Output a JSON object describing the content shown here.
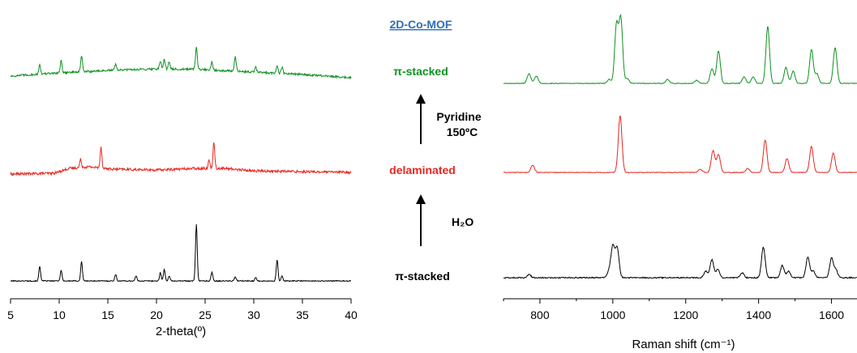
{
  "chart_data": [
    {
      "type": "line",
      "xlabel": "2-theta(º)",
      "ylabel": "",
      "xlim": [
        5,
        40
      ],
      "xticks": [
        5,
        10,
        15,
        20,
        25,
        30,
        35,
        40
      ],
      "grid": false,
      "series": [
        {
          "name": "π-stacked",
          "color": "#000000",
          "baseline": 0,
          "background": [
            [
              5,
              0
            ],
            [
              40,
              0
            ]
          ],
          "peaks": [
            [
              8.0,
              18
            ],
            [
              10.2,
              13
            ],
            [
              12.3,
              24
            ],
            [
              15.8,
              8
            ],
            [
              17.9,
              6
            ],
            [
              20.4,
              10
            ],
            [
              20.8,
              14
            ],
            [
              21.3,
              6
            ],
            [
              24.1,
              70
            ],
            [
              25.7,
              11
            ],
            [
              28.1,
              5
            ],
            [
              30.2,
              4
            ],
            [
              32.4,
              26
            ],
            [
              32.9,
              6
            ]
          ]
        },
        {
          "name": "delaminated",
          "color": "#e8261f",
          "baseline": 0,
          "background": [
            [
              5,
              1
            ],
            [
              9.5,
              2
            ],
            [
              11,
              8
            ],
            [
              13,
              10
            ],
            [
              15.5,
              7
            ],
            [
              20,
              6
            ],
            [
              24,
              8
            ],
            [
              27,
              8
            ],
            [
              30,
              5
            ],
            [
              40,
              3
            ]
          ],
          "peaks": [
            [
              12.2,
              10
            ],
            [
              14.3,
              26
            ],
            [
              25.9,
              33
            ],
            [
              25.4,
              10
            ]
          ]
        },
        {
          "name": "π-stacked",
          "color": "#0f9121",
          "baseline": 0,
          "background": [
            [
              5,
              4
            ],
            [
              10,
              8
            ],
            [
              15,
              11
            ],
            [
              20,
              13
            ],
            [
              25,
              12
            ],
            [
              30,
              9
            ],
            [
              35,
              6
            ],
            [
              40,
              2
            ]
          ],
          "peaks": [
            [
              8.0,
              12
            ],
            [
              10.2,
              15
            ],
            [
              12.3,
              20
            ],
            [
              15.8,
              8
            ],
            [
              20.4,
              10
            ],
            [
              20.8,
              12
            ],
            [
              21.3,
              9
            ],
            [
              24.1,
              28
            ],
            [
              25.7,
              10
            ],
            [
              28.1,
              18
            ],
            [
              30.2,
              6
            ],
            [
              32.4,
              10
            ],
            [
              32.9,
              8
            ]
          ]
        }
      ]
    },
    {
      "type": "line",
      "xlabel": "Raman shift (cm⁻¹)",
      "ylabel": "",
      "xlim": [
        700,
        1670
      ],
      "xticks": [
        800,
        1000,
        1200,
        1400,
        1600
      ],
      "grid": false,
      "series": [
        {
          "name": "π-stacked",
          "color": "#000000",
          "baseline": 0,
          "background": [
            [
              700,
              2
            ],
            [
              1670,
              2
            ]
          ],
          "peaks": [
            [
              770,
              4
            ],
            [
              990,
              8
            ],
            [
              1000,
              38
            ],
            [
              1012,
              36
            ],
            [
              1255,
              8
            ],
            [
              1272,
              22
            ],
            [
              1288,
              10
            ],
            [
              1355,
              6
            ],
            [
              1413,
              38
            ],
            [
              1465,
              15
            ],
            [
              1482,
              8
            ],
            [
              1535,
              25
            ],
            [
              1550,
              8
            ],
            [
              1600,
              24
            ],
            [
              1612,
              10
            ]
          ]
        },
        {
          "name": "delaminated",
          "color": "#e8261f",
          "baseline": 0,
          "background": [
            [
              700,
              2
            ],
            [
              1670,
              2
            ]
          ],
          "peaks": [
            [
              780,
              9
            ],
            [
              1020,
              70
            ],
            [
              1240,
              4
            ],
            [
              1275,
              27
            ],
            [
              1290,
              22
            ],
            [
              1370,
              5
            ],
            [
              1418,
              40
            ],
            [
              1478,
              17
            ],
            [
              1545,
              32
            ],
            [
              1605,
              24
            ]
          ]
        },
        {
          "name": "π-stacked",
          "color": "#0f9121",
          "baseline": 0,
          "background": [
            [
              700,
              1
            ],
            [
              1670,
              1
            ]
          ],
          "peaks": [
            [
              770,
              12
            ],
            [
              790,
              9
            ],
            [
              990,
              5
            ],
            [
              1010,
              72
            ],
            [
              1022,
              80
            ],
            [
              1040,
              6
            ],
            [
              1150,
              5
            ],
            [
              1230,
              4
            ],
            [
              1272,
              18
            ],
            [
              1290,
              40
            ],
            [
              1360,
              8
            ],
            [
              1385,
              8
            ],
            [
              1425,
              70
            ],
            [
              1475,
              20
            ],
            [
              1495,
              15
            ],
            [
              1545,
              42
            ],
            [
              1560,
              12
            ],
            [
              1610,
              44
            ]
          ]
        }
      ]
    }
  ],
  "annotations": {
    "title": "2D-Co-MOF",
    "top_label": "π-stacked",
    "middle_label": "delaminated",
    "bottom_label": "π-stacked",
    "step1": "H₂O",
    "step2_line1": "Pyridine",
    "step2_line2": "150ºC",
    "title_color": "#2e6fb5",
    "top_color": "#0f9121",
    "middle_color": "#e8261f",
    "bottom_color": "#000000"
  }
}
